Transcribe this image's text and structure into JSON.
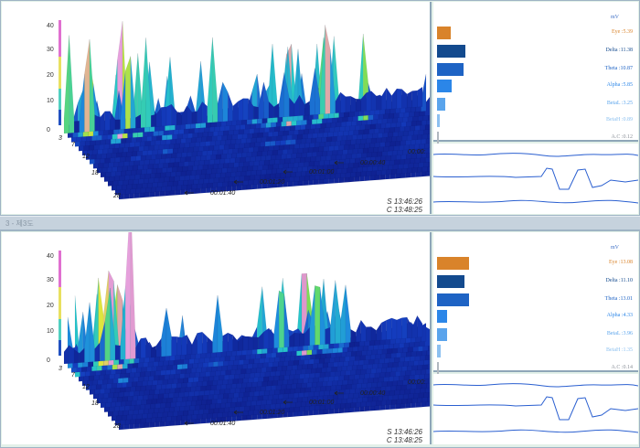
{
  "window_title": "3 - 제3도",
  "unit": "mV",
  "axis": {
    "z_ticks": [
      "40",
      "30",
      "20",
      "10",
      "0"
    ],
    "freq_ticks": [
      "3",
      "7",
      "12",
      "18",
      "28"
    ],
    "time_ticks": [
      "00:00:",
      "00:00:40",
      "00:01:00",
      "00:01:20",
      "00:01:40"
    ]
  },
  "panels": [
    {
      "id": "top",
      "start_label": "S",
      "start_time": "13:46:26",
      "current_label": "C",
      "current_time": "13:48:25",
      "bands": [
        {
          "label": "Eye",
          "value": "5.39",
          "level": 0.33,
          "color": "#d9832a"
        },
        {
          "label": "Delta",
          "value": "11.38",
          "level": 0.7,
          "color": "#134a8e"
        },
        {
          "label": "Theta",
          "value": "10.87",
          "level": 0.67,
          "color": "#1e63c4"
        },
        {
          "label": "Alpha",
          "value": "5.85",
          "level": 0.36,
          "color": "#2b86e8"
        },
        {
          "label": "BetaL",
          "value": "3.25",
          "level": 0.2,
          "color": "#5aa4ec"
        },
        {
          "label": "BetaH",
          "value": "0.89",
          "level": 0.06,
          "color": "#8cc0f0"
        },
        {
          "label": "A.C",
          "value": "0.12",
          "level": 0.01,
          "color": "#b0b8c0"
        }
      ]
    },
    {
      "id": "bottom",
      "start_label": "S",
      "start_time": "13:46:26",
      "current_label": "C",
      "current_time": "13:48:25",
      "bands": [
        {
          "label": "Eye",
          "value": "13.08",
          "level": 0.8,
          "color": "#d9832a"
        },
        {
          "label": "Delta",
          "value": "11.10",
          "level": 0.68,
          "color": "#134a8e"
        },
        {
          "label": "Theta",
          "value": "13.01",
          "level": 0.8,
          "color": "#1e63c4"
        },
        {
          "label": "Alpha",
          "value": "4.33",
          "level": 0.26,
          "color": "#2b86e8"
        },
        {
          "label": "BetaL",
          "value": "3.96",
          "level": 0.24,
          "color": "#5aa4ec"
        },
        {
          "label": "BetaH",
          "value": "1.35",
          "level": 0.08,
          "color": "#8cc0f0"
        },
        {
          "label": "A.C",
          "value": "0.14",
          "level": 0.01,
          "color": "#b0b8c0"
        }
      ]
    }
  ]
}
